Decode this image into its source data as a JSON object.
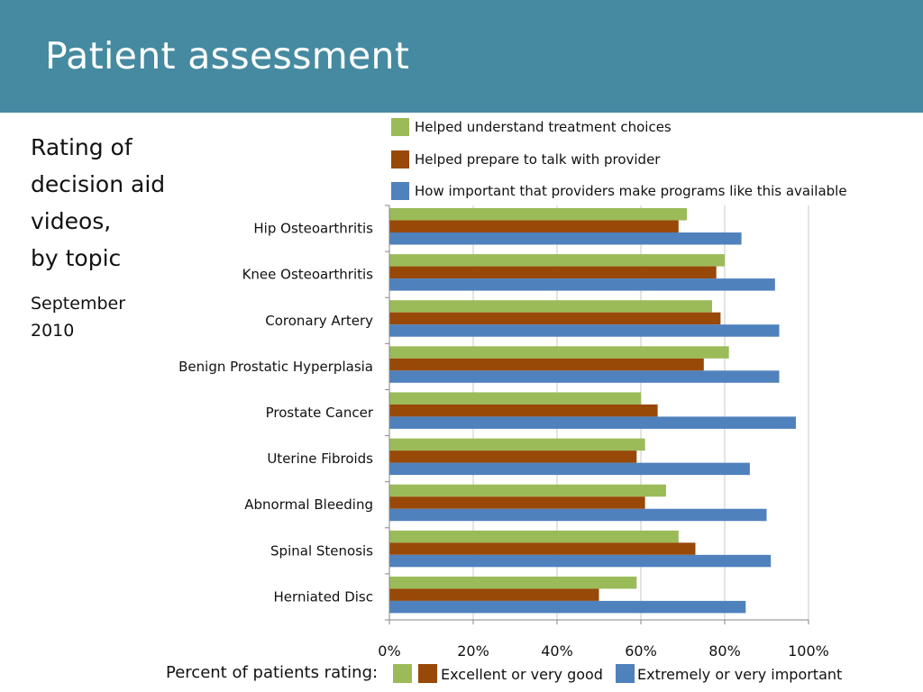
{
  "slide": {
    "title": "Patient assessment",
    "side_title_lines": [
      "Rating of",
      "decision aid",
      "videos,",
      "by topic"
    ],
    "side_date_lines": [
      "September",
      "2010"
    ]
  },
  "colors": {
    "header_bg": "#458aa0",
    "green": "#9bbb59",
    "brown": "#984807",
    "blue": "#4f81bd"
  },
  "bottom_legend": {
    "title": "Percent of patients rating:",
    "items": [
      {
        "label": "",
        "color": "#9bbb59"
      },
      {
        "label": "Excellent or very good",
        "color": "#984807"
      },
      {
        "label": "Extremely or very important",
        "color": "#4f81bd"
      }
    ]
  },
  "chart_data": {
    "type": "bar",
    "orientation": "horizontal",
    "categories": [
      "Hip Osteoarthritis",
      "Knee Osteoarthritis",
      "Coronary Artery",
      "Benign Prostatic Hyperplasia",
      "Prostate Cancer",
      "Uterine Fibroids",
      "Abnormal Bleeding",
      "Spinal Stenosis",
      "Herniated Disc"
    ],
    "series": [
      {
        "name": "Helped understand treatment choices",
        "color": "#9bbb59",
        "values": [
          71,
          80,
          77,
          81,
          60,
          61,
          66,
          69,
          59
        ]
      },
      {
        "name": "Helped prepare to talk with provider",
        "color": "#984807",
        "values": [
          69,
          78,
          79,
          75,
          64,
          59,
          61,
          73,
          50
        ]
      },
      {
        "name": "How important that providers make programs like this available",
        "color": "#4f81bd",
        "values": [
          84,
          92,
          93,
          93,
          97,
          86,
          90,
          91,
          85
        ]
      }
    ],
    "xlim": [
      0,
      100
    ],
    "xticks": [
      "0%",
      "20%",
      "40%",
      "60%",
      "80%",
      "100%"
    ],
    "grid": "vertical",
    "legend_position": "top-right"
  }
}
